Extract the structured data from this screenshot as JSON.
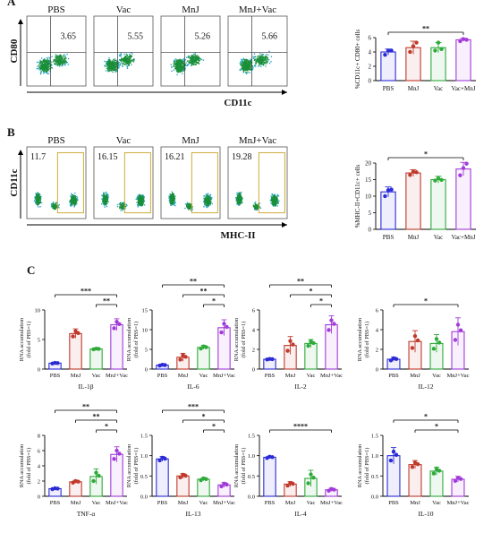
{
  "panels": {
    "A": {
      "label": "A",
      "flow": {
        "y_axis_label": "CD80",
        "x_axis_label": "CD11c",
        "plots": [
          {
            "title": "PBS",
            "value": "3.65"
          },
          {
            "title": "Vac",
            "value": "5.55"
          },
          {
            "title": "MnJ",
            "value": "5.26"
          },
          {
            "title": "MnJ+Vac",
            "value": "5.66"
          }
        ]
      },
      "bar": {
        "type": "bar",
        "ylabel": "%CD11c+ CD80+ cells",
        "categories": [
          "PBS",
          "MnJ",
          "Vac",
          "Vac+MnJ"
        ],
        "values": [
          4.0,
          4.6,
          4.6,
          5.7
        ],
        "errors": [
          0.4,
          0.9,
          0.7,
          0.2
        ],
        "points": [
          [
            3.6,
            4.2,
            4.2
          ],
          [
            4.0,
            4.8,
            5.3
          ],
          [
            4.2,
            5.3,
            4.4
          ],
          [
            5.5,
            5.8,
            5.7
          ]
        ],
        "colors": [
          "#2b2bd6",
          "#c0392b",
          "#2eaa3a",
          "#a23bd9"
        ],
        "ylim": [
          0,
          6
        ],
        "yticks": [
          "0",
          "2",
          "4",
          "6"
        ],
        "significance": [
          {
            "from": 0,
            "to": 3,
            "label": "**"
          }
        ]
      }
    },
    "B": {
      "label": "B",
      "flow": {
        "y_axis_label": "CD11c",
        "x_axis_label": "MHC-II",
        "plots": [
          {
            "title": "PBS",
            "value": "11.7"
          },
          {
            "title": "Vac",
            "value": "16.15"
          },
          {
            "title": "MnJ",
            "value": "16.21"
          },
          {
            "title": "MnJ+Vac",
            "value": "19.28"
          }
        ]
      },
      "bar": {
        "type": "bar",
        "ylabel": "%MHC-II+CD11c+ cells",
        "categories": [
          "PBS",
          "MnJ",
          "Vac",
          "Vac+MnJ"
        ],
        "values": [
          11.3,
          17.0,
          15.0,
          18.2
        ],
        "errors": [
          1.5,
          1.0,
          1.0,
          2.0
        ],
        "points": [
          [
            10.0,
            11.8,
            12.0
          ],
          [
            16.4,
            17.4,
            17.2
          ],
          [
            14.7,
            15.4,
            14.9
          ],
          [
            16.3,
            18.5,
            19.8
          ]
        ],
        "colors": [
          "#2b2bd6",
          "#c0392b",
          "#2eaa3a",
          "#a23bd9"
        ],
        "ylim": [
          0,
          20
        ],
        "yticks": [
          "0",
          "5",
          "10",
          "15",
          "20"
        ],
        "significance": [
          {
            "from": 0,
            "to": 3,
            "label": "*"
          }
        ]
      }
    },
    "C": {
      "label": "C"
    }
  },
  "chart_data": [
    {
      "type": "bar",
      "xlabel": "IL-1β",
      "ylabel": "RNA accumulation (fold of PBS=1)",
      "categories": [
        "PBS",
        "MnJ",
        "Vac",
        "MnJ+Vac"
      ],
      "values": [
        1.0,
        6.0,
        3.4,
        7.5
      ],
      "errors": [
        0.1,
        0.8,
        0.1,
        1.0
      ],
      "ylim": [
        0,
        10
      ],
      "yticks": [
        "0",
        "5",
        "10"
      ],
      "colors": [
        "#2b2bd6",
        "#c0392b",
        "#2eaa3a",
        "#a23bd9"
      ],
      "significance": [
        {
          "from": 0,
          "to": 3,
          "label": "***"
        },
        {
          "from": 2,
          "to": 3,
          "label": "**"
        }
      ]
    },
    {
      "type": "bar",
      "xlabel": "IL-6",
      "ylabel": "RNA accumulation (fold of PBS=1)",
      "categories": [
        "PBS",
        "MnJ",
        "Vac",
        "MnJ+Vac"
      ],
      "values": [
        1.0,
        3.0,
        5.5,
        10.5
      ],
      "errors": [
        0.2,
        1.0,
        0.5,
        2.0
      ],
      "ylim": [
        0,
        15
      ],
      "yticks": [
        "0",
        "5",
        "10",
        "15"
      ],
      "colors": [
        "#2b2bd6",
        "#c0392b",
        "#2eaa3a",
        "#a23bd9"
      ],
      "significance": [
        {
          "from": 0,
          "to": 3,
          "label": "**"
        },
        {
          "from": 1,
          "to": 3,
          "label": "**"
        },
        {
          "from": 2,
          "to": 3,
          "label": "*"
        }
      ]
    },
    {
      "type": "bar",
      "xlabel": "IL-2",
      "ylabel": "RNA accumulation (fold of PBS=1)",
      "categories": [
        "PBS",
        "MnJ",
        "Vac",
        "MnJ+Vac"
      ],
      "values": [
        1.0,
        2.4,
        2.6,
        4.5
      ],
      "errors": [
        0.05,
        0.9,
        0.4,
        0.9
      ],
      "ylim": [
        0,
        6
      ],
      "yticks": [
        "0",
        "2",
        "4",
        "6"
      ],
      "colors": [
        "#2b2bd6",
        "#c0392b",
        "#2eaa3a",
        "#a23bd9"
      ],
      "significance": [
        {
          "from": 0,
          "to": 3,
          "label": "**"
        },
        {
          "from": 1,
          "to": 3,
          "label": "*"
        },
        {
          "from": 2,
          "to": 3,
          "label": "*"
        }
      ]
    },
    {
      "type": "bar",
      "xlabel": "IL-12",
      "ylabel": "RNA accumulation (fold of PBS=1)",
      "categories": [
        "PBS",
        "MnJ",
        "Vac",
        "MnJ+Vac"
      ],
      "values": [
        1.0,
        2.8,
        2.6,
        3.8
      ],
      "errors": [
        0.2,
        1.1,
        0.9,
        1.4
      ],
      "ylim": [
        0,
        6
      ],
      "yticks": [
        "0",
        "2",
        "4",
        "6"
      ],
      "colors": [
        "#2b2bd6",
        "#c0392b",
        "#2eaa3a",
        "#a23bd9"
      ],
      "significance": [
        {
          "from": 0,
          "to": 3,
          "label": "*"
        }
      ]
    },
    {
      "type": "bar",
      "xlabel": "TNF-α",
      "ylabel": "RNA accumulation (fold of PBS=1)",
      "categories": [
        "PBS",
        "MnJ",
        "Vac",
        "MnJ+Vac"
      ],
      "values": [
        1.0,
        1.9,
        2.6,
        5.5
      ],
      "errors": [
        0.1,
        0.2,
        1.0,
        1.0
      ],
      "ylim": [
        0,
        8
      ],
      "yticks": [
        "0",
        "2",
        "4",
        "6",
        "8"
      ],
      "colors": [
        "#2b2bd6",
        "#c0392b",
        "#2eaa3a",
        "#a23bd9"
      ],
      "significance": [
        {
          "from": 0,
          "to": 3,
          "label": "**"
        },
        {
          "from": 1,
          "to": 3,
          "label": "**"
        },
        {
          "from": 2,
          "to": 3,
          "label": "*"
        }
      ]
    },
    {
      "type": "bar",
      "xlabel": "IL-13",
      "ylabel": "RNA accumulation (fold of PBS=1)",
      "categories": [
        "PBS",
        "MnJ",
        "Vac",
        "MnJ+Vac"
      ],
      "values": [
        0.92,
        0.5,
        0.42,
        0.28
      ],
      "errors": [
        0.06,
        0.06,
        0.04,
        0.06
      ],
      "ylim": [
        0,
        1.5
      ],
      "yticks": [
        "0.0",
        "0.5",
        "1.0",
        "1.5"
      ],
      "colors": [
        "#2b2bd6",
        "#c0392b",
        "#2eaa3a",
        "#a23bd9"
      ],
      "significance": [
        {
          "from": 0,
          "to": 3,
          "label": "***"
        },
        {
          "from": 1,
          "to": 3,
          "label": "*"
        },
        {
          "from": 2,
          "to": 3,
          "label": "*"
        }
      ]
    },
    {
      "type": "bar",
      "xlabel": "IL-4",
      "ylabel": "RNA accumulation (fold of PBS=1)",
      "categories": [
        "PBS",
        "MnJ",
        "Vac",
        "MnJ+Vac"
      ],
      "values": [
        0.96,
        0.3,
        0.44,
        0.16
      ],
      "errors": [
        0.03,
        0.06,
        0.2,
        0.04
      ],
      "ylim": [
        0,
        1.5
      ],
      "yticks": [
        "0.0",
        "0.5",
        "1.0",
        "1.5"
      ],
      "colors": [
        "#2b2bd6",
        "#c0392b",
        "#2eaa3a",
        "#a23bd9"
      ],
      "significance": [
        {
          "from": 0,
          "to": 3,
          "label": "****"
        }
      ]
    },
    {
      "type": "bar",
      "xlabel": "IL-10",
      "ylabel": "RNA accumulation (fold of PBS=1)",
      "categories": [
        "PBS",
        "MnJ",
        "Vac",
        "MnJ+Vac"
      ],
      "values": [
        1.0,
        0.78,
        0.62,
        0.42
      ],
      "errors": [
        0.2,
        0.1,
        0.1,
        0.07
      ],
      "ylim": [
        0,
        1.5
      ],
      "yticks": [
        "0.0",
        "0.5",
        "1.0",
        "1.5"
      ],
      "colors": [
        "#2b2bd6",
        "#c0392b",
        "#2eaa3a",
        "#a23bd9"
      ],
      "significance": [
        {
          "from": 0,
          "to": 3,
          "label": "*"
        },
        {
          "from": 1,
          "to": 3,
          "label": "*"
        }
      ]
    }
  ]
}
